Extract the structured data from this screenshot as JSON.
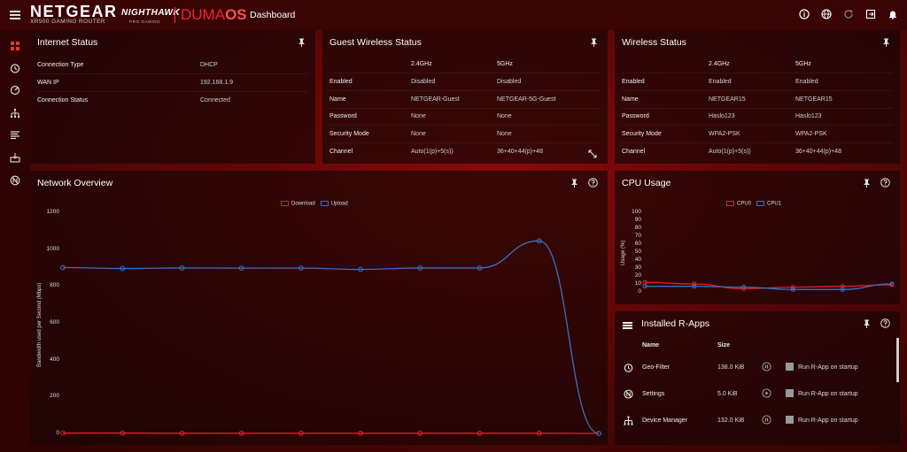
{
  "header": {
    "brand": "NETGEAR",
    "model": "XR500 GAMING ROUTER",
    "nighthawk": "NIGHTHAWK",
    "nighthawk_sub": "PRO GAMING",
    "os_prefix": "DUMA",
    "os_suffix": "OS",
    "page_title": "Dashboard",
    "icons": [
      "info-icon",
      "globe-icon",
      "refresh-icon",
      "logout-icon",
      "bell-icon"
    ]
  },
  "sidebar": {
    "icons": [
      "dashboard-icon",
      "geo-filter-icon",
      "qos-icon",
      "device-manager-icon",
      "network-monitor-icon",
      "r-apps-icon",
      "settings-icon"
    ]
  },
  "internet_status": {
    "title": "Internet Status",
    "rows": [
      {
        "label": "Connection Type",
        "value": "DHCP"
      },
      {
        "label": "WAN IP",
        "value": "192.168.1.9"
      },
      {
        "label": "Connection Status",
        "value": "Connected"
      }
    ]
  },
  "guest_wireless": {
    "title": "Guest Wireless Status",
    "col_24": "2.4GHz",
    "col_5": "5GHz",
    "rows": [
      {
        "label": "Enabled",
        "v24": "Disabled",
        "v5": "Disabled"
      },
      {
        "label": "Name",
        "v24": "NETGEAR-Guest",
        "v5": "NETGEAR-5G-Guest"
      },
      {
        "label": "Password",
        "v24": "None",
        "v5": "None"
      },
      {
        "label": "Security Mode",
        "v24": "None",
        "v5": "None"
      },
      {
        "label": "Channel",
        "v24": "Auto(1(p)+5(s))",
        "v5": "36+40+44(p)+48"
      }
    ]
  },
  "wireless_status": {
    "title": "Wireless Status",
    "col_24": "2.4GHz",
    "col_5": "5GHz",
    "rows": [
      {
        "label": "Enabled",
        "v24": "Enabled",
        "v5": "Enabled"
      },
      {
        "label": "Name",
        "v24": "NETGEAR15",
        "v5": "NETGEAR15"
      },
      {
        "label": "Password",
        "v24": "Haslo123",
        "v5": "Haslo123"
      },
      {
        "label": "Security Mode",
        "v24": "WPA2-PSK",
        "v5": "WPA2-PSK"
      },
      {
        "label": "Channel",
        "v24": "Auto(1(p)+5(s))",
        "v5": "36+40+44(p)+48"
      }
    ]
  },
  "network_overview": {
    "title": "Network Overview"
  },
  "cpu_usage": {
    "title": "CPU Usage"
  },
  "installed_rapps": {
    "title": "Installed R-Apps",
    "col_name": "Name",
    "col_size": "Size",
    "items": [
      {
        "name": "Geo-Filter",
        "size": "138.0 KiB",
        "startup": "Run R-App on startup",
        "icon": "geo-filter-icon"
      },
      {
        "name": "Settings",
        "size": "5.0 KiB",
        "startup": "Run R-App on startup",
        "icon": "settings-icon"
      },
      {
        "name": "Device Manager",
        "size": "132.0 KiB",
        "startup": "Run R-App on startup",
        "icon": "device-manager-icon"
      }
    ]
  },
  "colors": {
    "download": "#e0202a",
    "upload": "#3a6fc4",
    "cpu0": "#e0202a",
    "cpu1": "#3a6fc4"
  },
  "chart_data": [
    {
      "type": "line",
      "title": "",
      "xlabel": "",
      "ylabel": "Bandwidth used per Second (Mbps)",
      "ylim": [
        0,
        1200
      ],
      "yticks": [
        0,
        200,
        400,
        600,
        800,
        1000,
        1200
      ],
      "x": [
        1,
        2,
        3,
        4,
        5,
        6,
        7,
        8,
        9,
        10
      ],
      "series": [
        {
          "name": "Download",
          "values": [
            2,
            2,
            1,
            1,
            1,
            1,
            1,
            1,
            1,
            0
          ]
        },
        {
          "name": "Upload",
          "values": [
            900,
            895,
            898,
            897,
            897,
            890,
            898,
            898,
            1045,
            0
          ]
        }
      ],
      "legend": "top-center",
      "grid": false
    },
    {
      "type": "line",
      "title": "",
      "xlabel": "",
      "ylabel": "Usage (%)",
      "ylim": [
        0,
        100
      ],
      "yticks": [
        0,
        10,
        20,
        30,
        40,
        50,
        60,
        70,
        80,
        90,
        100
      ],
      "x": [
        1,
        2,
        3,
        4,
        5,
        6
      ],
      "series": [
        {
          "name": "CPU0",
          "values": [
            12,
            10,
            4,
            6,
            7,
            9
          ]
        },
        {
          "name": "CPU1",
          "values": [
            7,
            7,
            6,
            3,
            3,
            10
          ]
        }
      ],
      "legend": "top-center",
      "grid": false
    }
  ]
}
